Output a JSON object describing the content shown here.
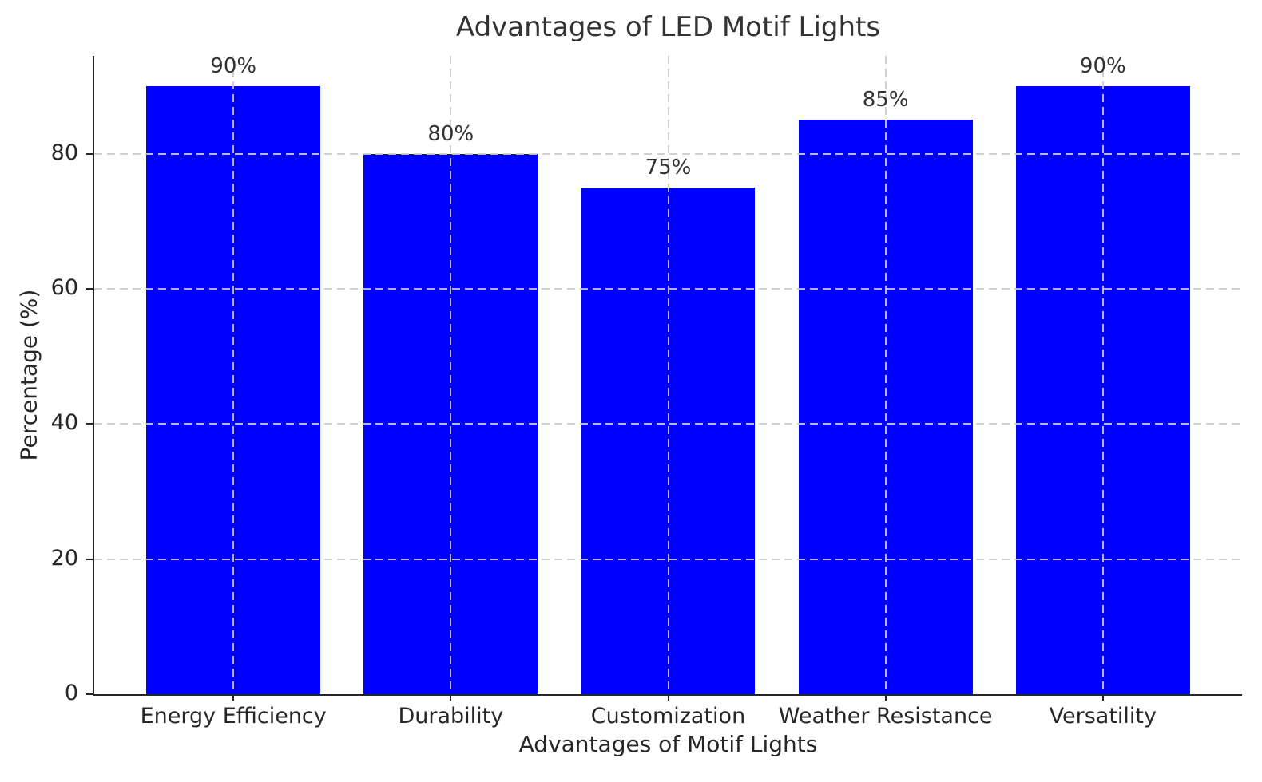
{
  "chart_data": {
    "type": "bar",
    "title": "Advantages of LED Motif Lights",
    "xlabel": "Advantages of Motif Lights",
    "ylabel": "Percentage (%)",
    "categories": [
      "Energy Efficiency",
      "Durability",
      "Customization",
      "Weather Resistance",
      "Versatility"
    ],
    "values": [
      90,
      80,
      75,
      85,
      90
    ],
    "bar_labels": [
      "90%",
      "80%",
      "75%",
      "85%",
      "90%"
    ],
    "yticks": [
      0,
      20,
      40,
      60,
      80
    ],
    "ylim": [
      0,
      94.5
    ],
    "xlim_units": [
      -0.64,
      4.64
    ],
    "bar_width_units": 0.8,
    "grid": "dashed gridlines at y-ticks and category centers, drawn on top of bars",
    "legend": "none",
    "colors": {
      "bar": "#0000ff",
      "title_text": "#333333",
      "axis_text": "#262626",
      "spine": "#262626",
      "grid": "#cccccc"
    }
  }
}
